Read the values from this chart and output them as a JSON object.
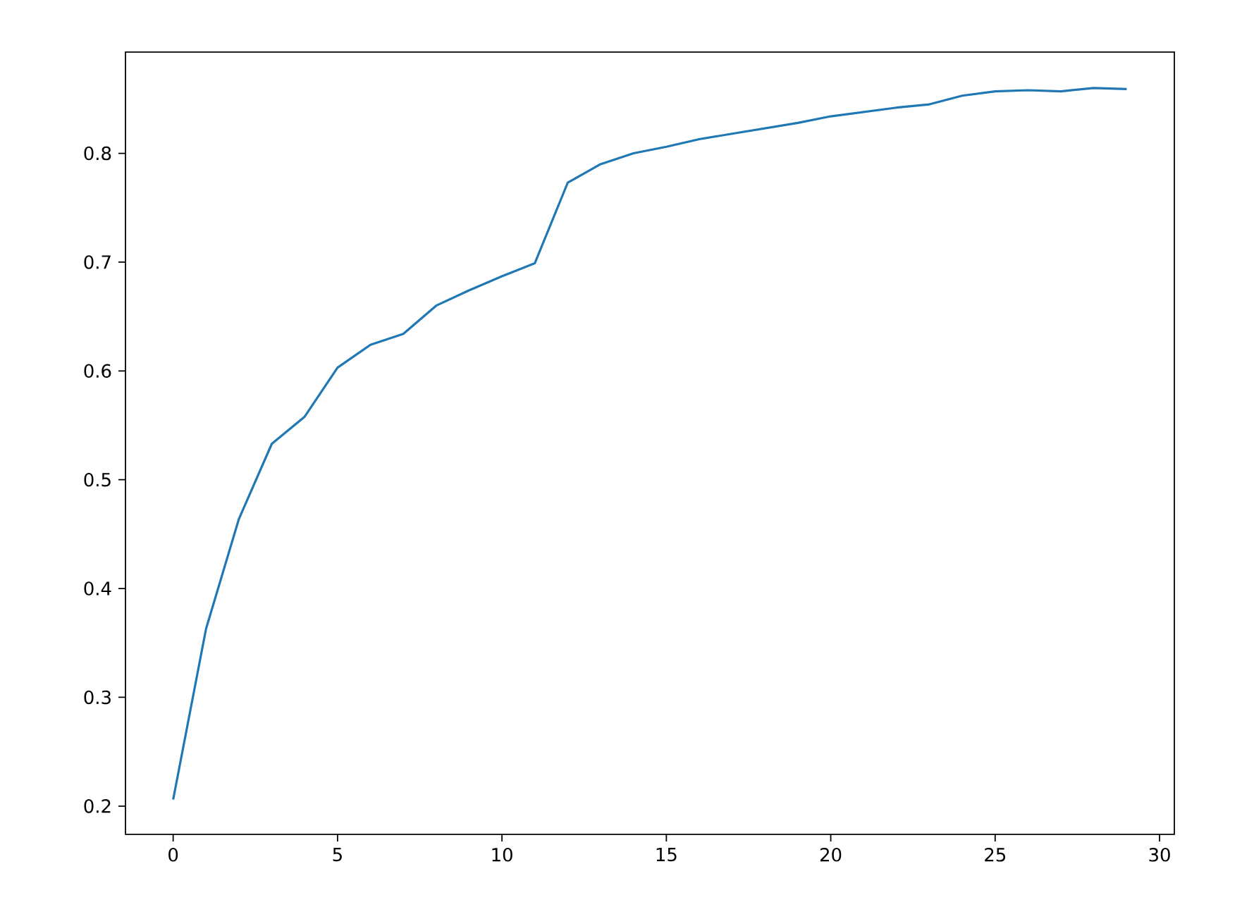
{
  "chart_data": {
    "type": "line",
    "x": [
      0,
      1,
      2,
      3,
      4,
      5,
      6,
      7,
      8,
      9,
      10,
      11,
      12,
      13,
      14,
      15,
      16,
      17,
      18,
      19,
      20,
      21,
      22,
      23,
      24,
      25,
      26,
      27,
      28,
      29
    ],
    "series": [
      {
        "color": "#1f77b4",
        "values": [
          0.206,
          0.363,
          0.464,
          0.533,
          0.558,
          0.603,
          0.624,
          0.634,
          0.66,
          0.674,
          0.687,
          0.699,
          0.773,
          0.79,
          0.8,
          0.806,
          0.813,
          0.818,
          0.823,
          0.828,
          0.834,
          0.838,
          0.842,
          0.845,
          0.853,
          0.857,
          0.858,
          0.857,
          0.86,
          0.859
        ]
      }
    ],
    "xlim": [
      -1.45,
      30.45
    ],
    "ylim": [
      0.174,
      0.893
    ],
    "xticks": [
      0,
      5,
      10,
      15,
      20,
      25,
      30
    ],
    "yticks": [
      0.2,
      0.3,
      0.4,
      0.5,
      0.6,
      0.7,
      0.8
    ],
    "grid": false,
    "marker": "none",
    "line_style": "solid"
  }
}
